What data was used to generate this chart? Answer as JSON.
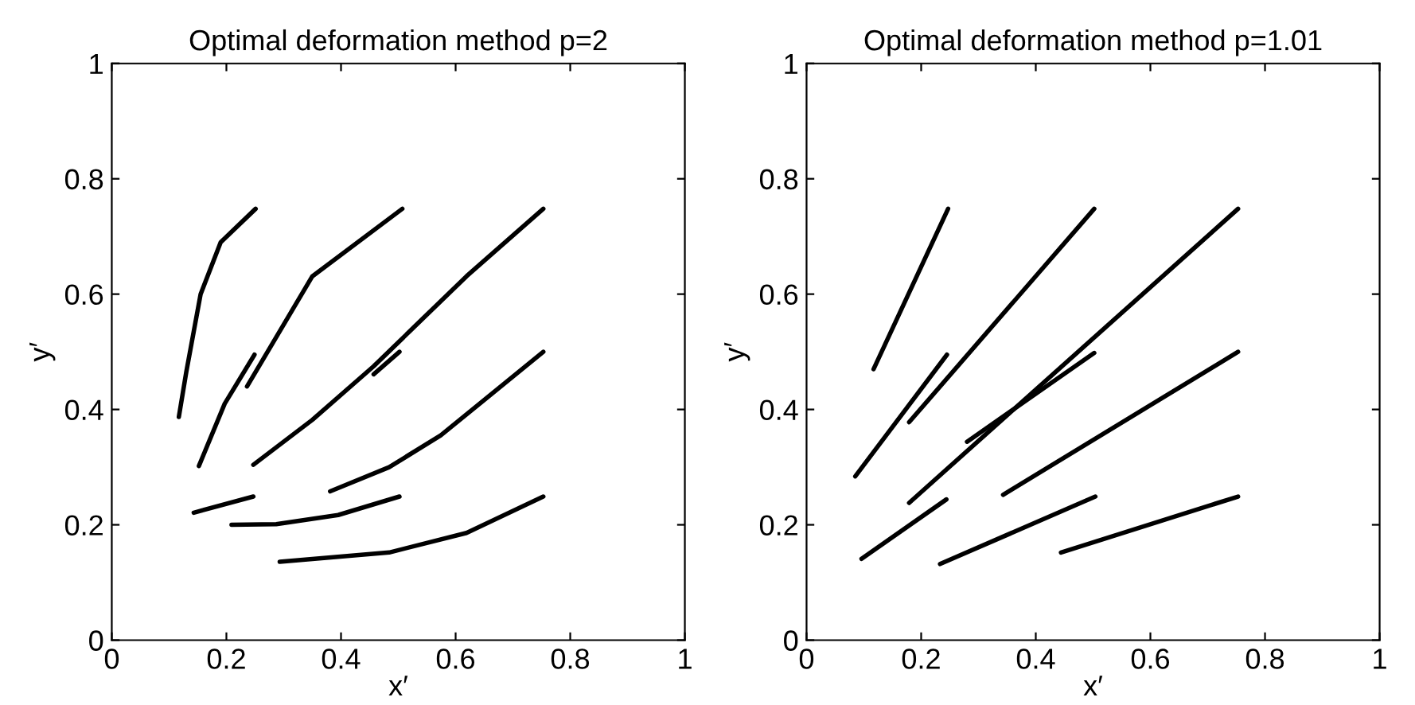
{
  "chart_data": [
    {
      "type": "line",
      "title": "Optimal deformation method p=2",
      "xlabel": "x′",
      "ylabel": "y′",
      "xlim": [
        0,
        1
      ],
      "ylim": [
        0,
        1
      ],
      "xticks": [
        0,
        0.2,
        0.4,
        0.6,
        0.8,
        1
      ],
      "yticks": [
        0,
        0.2,
        0.4,
        0.6,
        0.8,
        1
      ],
      "grid": false,
      "legend": false,
      "marker": "none",
      "line_style": "solid",
      "series": [
        {
          "color": "#000000",
          "x": [
            0.117,
            0.13,
            0.155,
            0.19,
            0.251
          ],
          "values": [
            0.387,
            0.465,
            0.6,
            0.69,
            0.748
          ]
        },
        {
          "color": "#000000",
          "x": [
            0.152,
            0.197,
            0.249
          ],
          "values": [
            0.302,
            0.41,
            0.495
          ]
        },
        {
          "color": "#000000",
          "x": [
            0.236,
            0.35,
            0.507
          ],
          "values": [
            0.44,
            0.631,
            0.748
          ]
        },
        {
          "color": "#000000",
          "x": [
            0.247,
            0.35,
            0.457,
            0.619,
            0.753
          ],
          "values": [
            0.304,
            0.382,
            0.475,
            0.631,
            0.748
          ]
        },
        {
          "color": "#000000",
          "x": [
            0.457,
            0.502
          ],
          "values": [
            0.461,
            0.5
          ]
        },
        {
          "color": "#000000",
          "x": [
            0.381,
            0.484,
            0.574,
            0.753
          ],
          "values": [
            0.258,
            0.3,
            0.355,
            0.5
          ]
        },
        {
          "color": "#000000",
          "x": [
            0.143,
            0.247
          ],
          "values": [
            0.221,
            0.249
          ]
        },
        {
          "color": "#000000",
          "x": [
            0.209,
            0.287,
            0.395,
            0.502
          ],
          "values": [
            0.2,
            0.201,
            0.217,
            0.249
          ]
        },
        {
          "color": "#000000",
          "x": [
            0.293,
            0.484,
            0.619,
            0.753
          ],
          "values": [
            0.136,
            0.152,
            0.186,
            0.249
          ]
        }
      ]
    },
    {
      "type": "line",
      "title": "Optimal deformation method p=1.01",
      "xlabel": "x′",
      "ylabel": "y′",
      "xlim": [
        0,
        1
      ],
      "ylim": [
        0,
        1
      ],
      "xticks": [
        0,
        0.2,
        0.4,
        0.6,
        0.8,
        1
      ],
      "yticks": [
        0,
        0.2,
        0.4,
        0.6,
        0.8,
        1
      ],
      "grid": false,
      "legend": false,
      "marker": "none",
      "line_style": "solid",
      "series": [
        {
          "color": "#000000",
          "x": [
            0.117,
            0.247
          ],
          "values": [
            0.47,
            0.748
          ]
        },
        {
          "color": "#000000",
          "x": [
            0.085,
            0.245
          ],
          "values": [
            0.284,
            0.495
          ]
        },
        {
          "color": "#000000",
          "x": [
            0.179,
            0.502
          ],
          "values": [
            0.378,
            0.748
          ]
        },
        {
          "color": "#000000",
          "x": [
            0.28,
            0.502
          ],
          "values": [
            0.344,
            0.498
          ]
        },
        {
          "color": "#000000",
          "x": [
            0.179,
            0.753
          ],
          "values": [
            0.238,
            0.748
          ]
        },
        {
          "color": "#000000",
          "x": [
            0.343,
            0.753
          ],
          "values": [
            0.252,
            0.5
          ]
        },
        {
          "color": "#000000",
          "x": [
            0.096,
            0.244
          ],
          "values": [
            0.141,
            0.244
          ]
        },
        {
          "color": "#000000",
          "x": [
            0.233,
            0.504
          ],
          "values": [
            0.132,
            0.249
          ]
        },
        {
          "color": "#000000",
          "x": [
            0.444,
            0.753
          ],
          "values": [
            0.152,
            0.249
          ]
        }
      ]
    }
  ]
}
